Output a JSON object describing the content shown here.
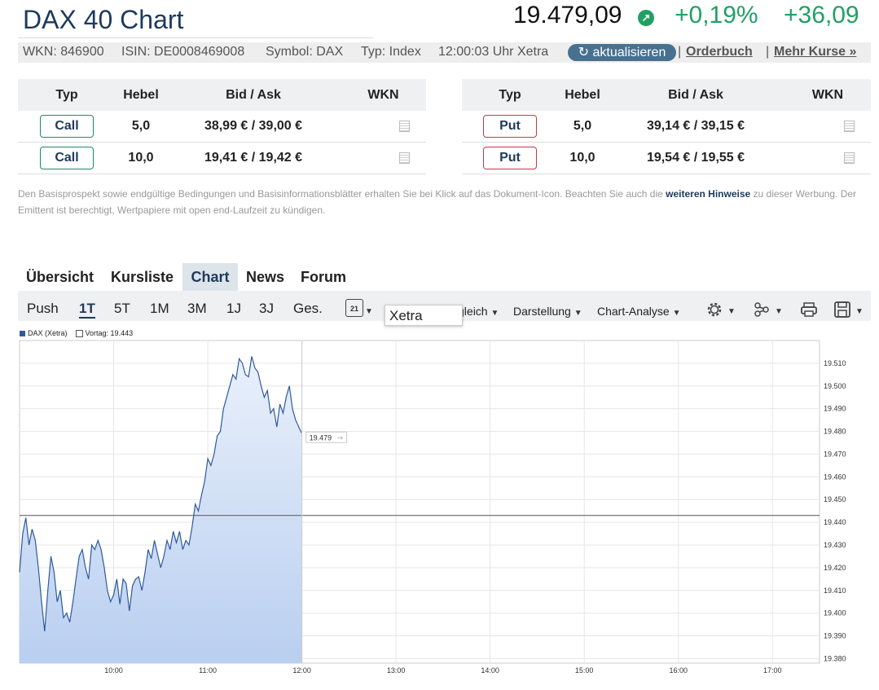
{
  "header": {
    "title": "DAX 40 Chart",
    "price": "19.479,09",
    "change_pct": "+0,19%",
    "change_abs": "+36,09",
    "wkn": "WKN: 846900",
    "isin": "ISIN: DE0008469008",
    "symbol": "Symbol: DAX",
    "type": "Typ: Index",
    "time": "12:00:03 Uhr Xetra",
    "refresh_label": "aktualisieren",
    "orderbook_label": "Orderbuch",
    "more_quotes_label": "Mehr Kurse »",
    "separator": "|",
    "up_color": "#22a064"
  },
  "derivatives": {
    "headers": [
      "Typ",
      "Hebel",
      "Bid / Ask",
      "WKN"
    ],
    "calls": [
      {
        "type": "Call",
        "lever": "5,0",
        "bidask": "38,99 € / 39,00 €"
      },
      {
        "type": "Call",
        "lever": "10,0",
        "bidask": "19,41 € / 19,42 €"
      }
    ],
    "puts": [
      {
        "type": "Put",
        "lever": "5,0",
        "bidask": "39,14 € / 39,15 €"
      },
      {
        "type": "Put",
        "lever": "10,0",
        "bidask": "19,54 € / 19,55 €"
      }
    ]
  },
  "disclaimer": {
    "text": "Den Basisprospekt sowie endgültige Bedingungen und Basisinformationsblätter erhalten Sie bei Klick auf das Dokument-Icon. Beachten Sie auch die ",
    "link": "weiteren Hinweise",
    "text2": " zu dieser Werbung. Der Emittent ist berechtigt, Wertpapiere mit open end-Laufzeit zu kündigen."
  },
  "tabs": [
    "Übersicht",
    "Kursliste",
    "Chart",
    "News",
    "Forum"
  ],
  "toolbar": {
    "ranges": [
      "Push",
      "1T",
      "5T",
      "1M",
      "3M",
      "1J",
      "3J",
      "Ges."
    ],
    "calendar_day": "21",
    "exchange": "Xetra",
    "compare": "Vergleich",
    "display": "Darstellung",
    "analysis": "Chart-Analyse"
  },
  "chart_data": {
    "type": "area",
    "legend": [
      "DAX (Xetra)",
      "Vortag: 19.443"
    ],
    "previous_close": 19443,
    "last_label": "19.479",
    "last_value": 19479,
    "ylim": [
      19378,
      19520
    ],
    "y_ticks": [
      19380,
      19390,
      19400,
      19410,
      19420,
      19430,
      19440,
      19450,
      19460,
      19470,
      19480,
      19490,
      19500,
      19510
    ],
    "y_tick_labels": [
      "19.380",
      "19.390",
      "19.400",
      "19.410",
      "19.420",
      "19.430",
      "19.440",
      "19.450",
      "19.460",
      "19.470",
      "19.480",
      "19.490",
      "19.500",
      "19.510"
    ],
    "x_tick_labels": [
      "10:00",
      "11:00",
      "12:00",
      "13:00",
      "14:00",
      "15:00",
      "16:00",
      "17:00"
    ],
    "x_range": [
      "09:00",
      "17:30"
    ],
    "series": [
      {
        "times": [
          "09:00",
          "09:02",
          "09:04",
          "09:06",
          "09:08",
          "09:10",
          "09:12",
          "09:14",
          "09:16",
          "09:18",
          "09:20",
          "09:22",
          "09:24",
          "09:26",
          "09:28",
          "09:30",
          "09:32",
          "09:34",
          "09:36",
          "09:38",
          "09:40",
          "09:42",
          "09:44",
          "09:46",
          "09:48",
          "09:50",
          "09:52",
          "09:54",
          "09:56",
          "09:58",
          "10:00",
          "10:02",
          "10:04",
          "10:06",
          "10:08",
          "10:10",
          "10:12",
          "10:14",
          "10:16",
          "10:18",
          "10:20",
          "10:22",
          "10:24",
          "10:26",
          "10:28",
          "10:30",
          "10:32",
          "10:34",
          "10:36",
          "10:38",
          "10:40",
          "10:42",
          "10:44",
          "10:46",
          "10:48",
          "10:50",
          "10:52",
          "10:54",
          "10:56",
          "10:58",
          "11:00",
          "11:02",
          "11:04",
          "11:06",
          "11:08",
          "11:10",
          "11:12",
          "11:14",
          "11:16",
          "11:18",
          "11:20",
          "11:22",
          "11:24",
          "11:26",
          "11:28",
          "11:30",
          "11:32",
          "11:34",
          "11:36",
          "11:38",
          "11:40",
          "11:42",
          "11:44",
          "11:46",
          "11:48",
          "11:50",
          "11:52",
          "11:54",
          "11:56",
          "11:58",
          "12:00"
        ],
        "values": [
          19418,
          19435,
          19442,
          19430,
          19437,
          19432,
          19420,
          19405,
          19392,
          19410,
          19425,
          19418,
          19405,
          19410,
          19398,
          19400,
          19396,
          19405,
          19415,
          19425,
          19428,
          19420,
          19415,
          19430,
          19428,
          19432,
          19428,
          19420,
          19410,
          19405,
          19408,
          19415,
          19404,
          19415,
          19413,
          19401,
          19412,
          19415,
          19416,
          19410,
          19418,
          19428,
          19424,
          19432,
          19426,
          19420,
          19425,
          19432,
          19428,
          19436,
          19431,
          19436,
          19428,
          19432,
          19430,
          19438,
          19448,
          19445,
          19452,
          19458,
          19468,
          19465,
          19470,
          19478,
          19480,
          19490,
          19495,
          19500,
          19505,
          19503,
          19512,
          19510,
          19505,
          19504,
          19513,
          19508,
          19506,
          19500,
          19495,
          19498,
          19488,
          19490,
          19482,
          19492,
          19488,
          19495,
          19500,
          19490,
          19485,
          19482,
          19479
        ]
      }
    ]
  }
}
